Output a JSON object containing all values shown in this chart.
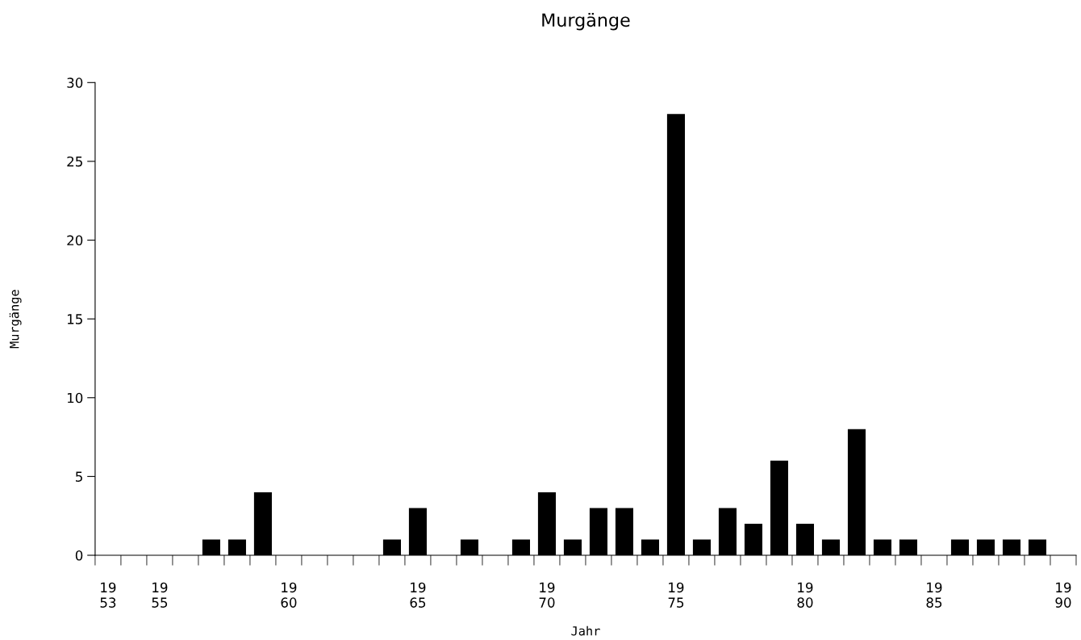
{
  "chart_data": {
    "type": "bar",
    "title": "Murgänge",
    "xlabel": "Jahr",
    "ylabel": "Murgänge",
    "categories": [
      "19\n53",
      null,
      "19\n55",
      null,
      null,
      null,
      null,
      "19\n60",
      null,
      null,
      null,
      null,
      "19\n65",
      null,
      null,
      null,
      null,
      "19\n70",
      null,
      null,
      null,
      null,
      "19\n75",
      null,
      null,
      null,
      null,
      "19\n80",
      null,
      null,
      null,
      null,
      "19\n85",
      null,
      null,
      null,
      null,
      "19\n90"
    ],
    "values": [
      0,
      0,
      0,
      0,
      1,
      1,
      4,
      0,
      0,
      0,
      0,
      1,
      3,
      0,
      1,
      0,
      1,
      4,
      1,
      3,
      3,
      1,
      28,
      1,
      3,
      2,
      6,
      2,
      1,
      8,
      1,
      1,
      0,
      1,
      1,
      1,
      1,
      0
    ],
    "color": "#000000",
    "ylim": [
      0,
      30
    ],
    "yticks": [
      0,
      5,
      10,
      15,
      20,
      25,
      30
    ],
    "grid": false,
    "legend": false
  }
}
